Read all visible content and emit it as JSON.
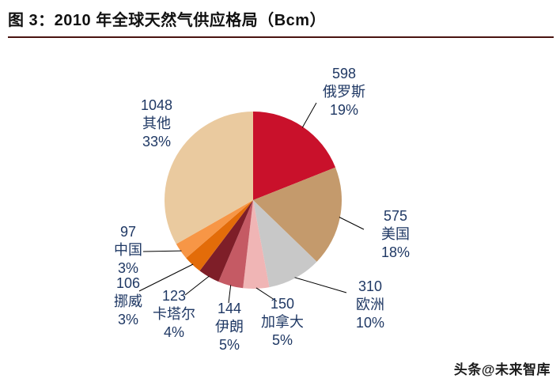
{
  "header": {
    "title": "图 3：2010 年全球天然气供应格局（Bcm）"
  },
  "watermark": "头条@未来智库",
  "colors": {
    "label_text": "#1F3864",
    "title_underline": "#4a1410",
    "leader_line": "#000000"
  },
  "chart_data": {
    "type": "pie",
    "title": "2010 年全球天然气供应格局（Bcm）",
    "unit": "Bcm",
    "direction": "clockwise",
    "start_angle": "top",
    "legend_position": "none",
    "slices": [
      {
        "name": "俄罗斯",
        "value": 598,
        "pct": "19%",
        "color": "#C9112B"
      },
      {
        "name": "美国",
        "value": 575,
        "pct": "18%",
        "color": "#C49A6C"
      },
      {
        "name": "欧洲",
        "value": 310,
        "pct": "10%",
        "color": "#C8C8C8"
      },
      {
        "name": "加拿大",
        "value": 150,
        "pct": "5%",
        "color": "#F0B5B5"
      },
      {
        "name": "伊朗",
        "value": 144,
        "pct": "5%",
        "color": "#C55A64"
      },
      {
        "name": "卡塔尔",
        "value": 123,
        "pct": "4%",
        "color": "#7E1E28"
      },
      {
        "name": "挪威",
        "value": 106,
        "pct": "3%",
        "color": "#E36C09"
      },
      {
        "name": "中国",
        "value": 97,
        "pct": "3%",
        "color": "#F79646"
      },
      {
        "name": "其他",
        "value": 1048,
        "pct": "33%",
        "color": "#EACA9F"
      }
    ]
  }
}
